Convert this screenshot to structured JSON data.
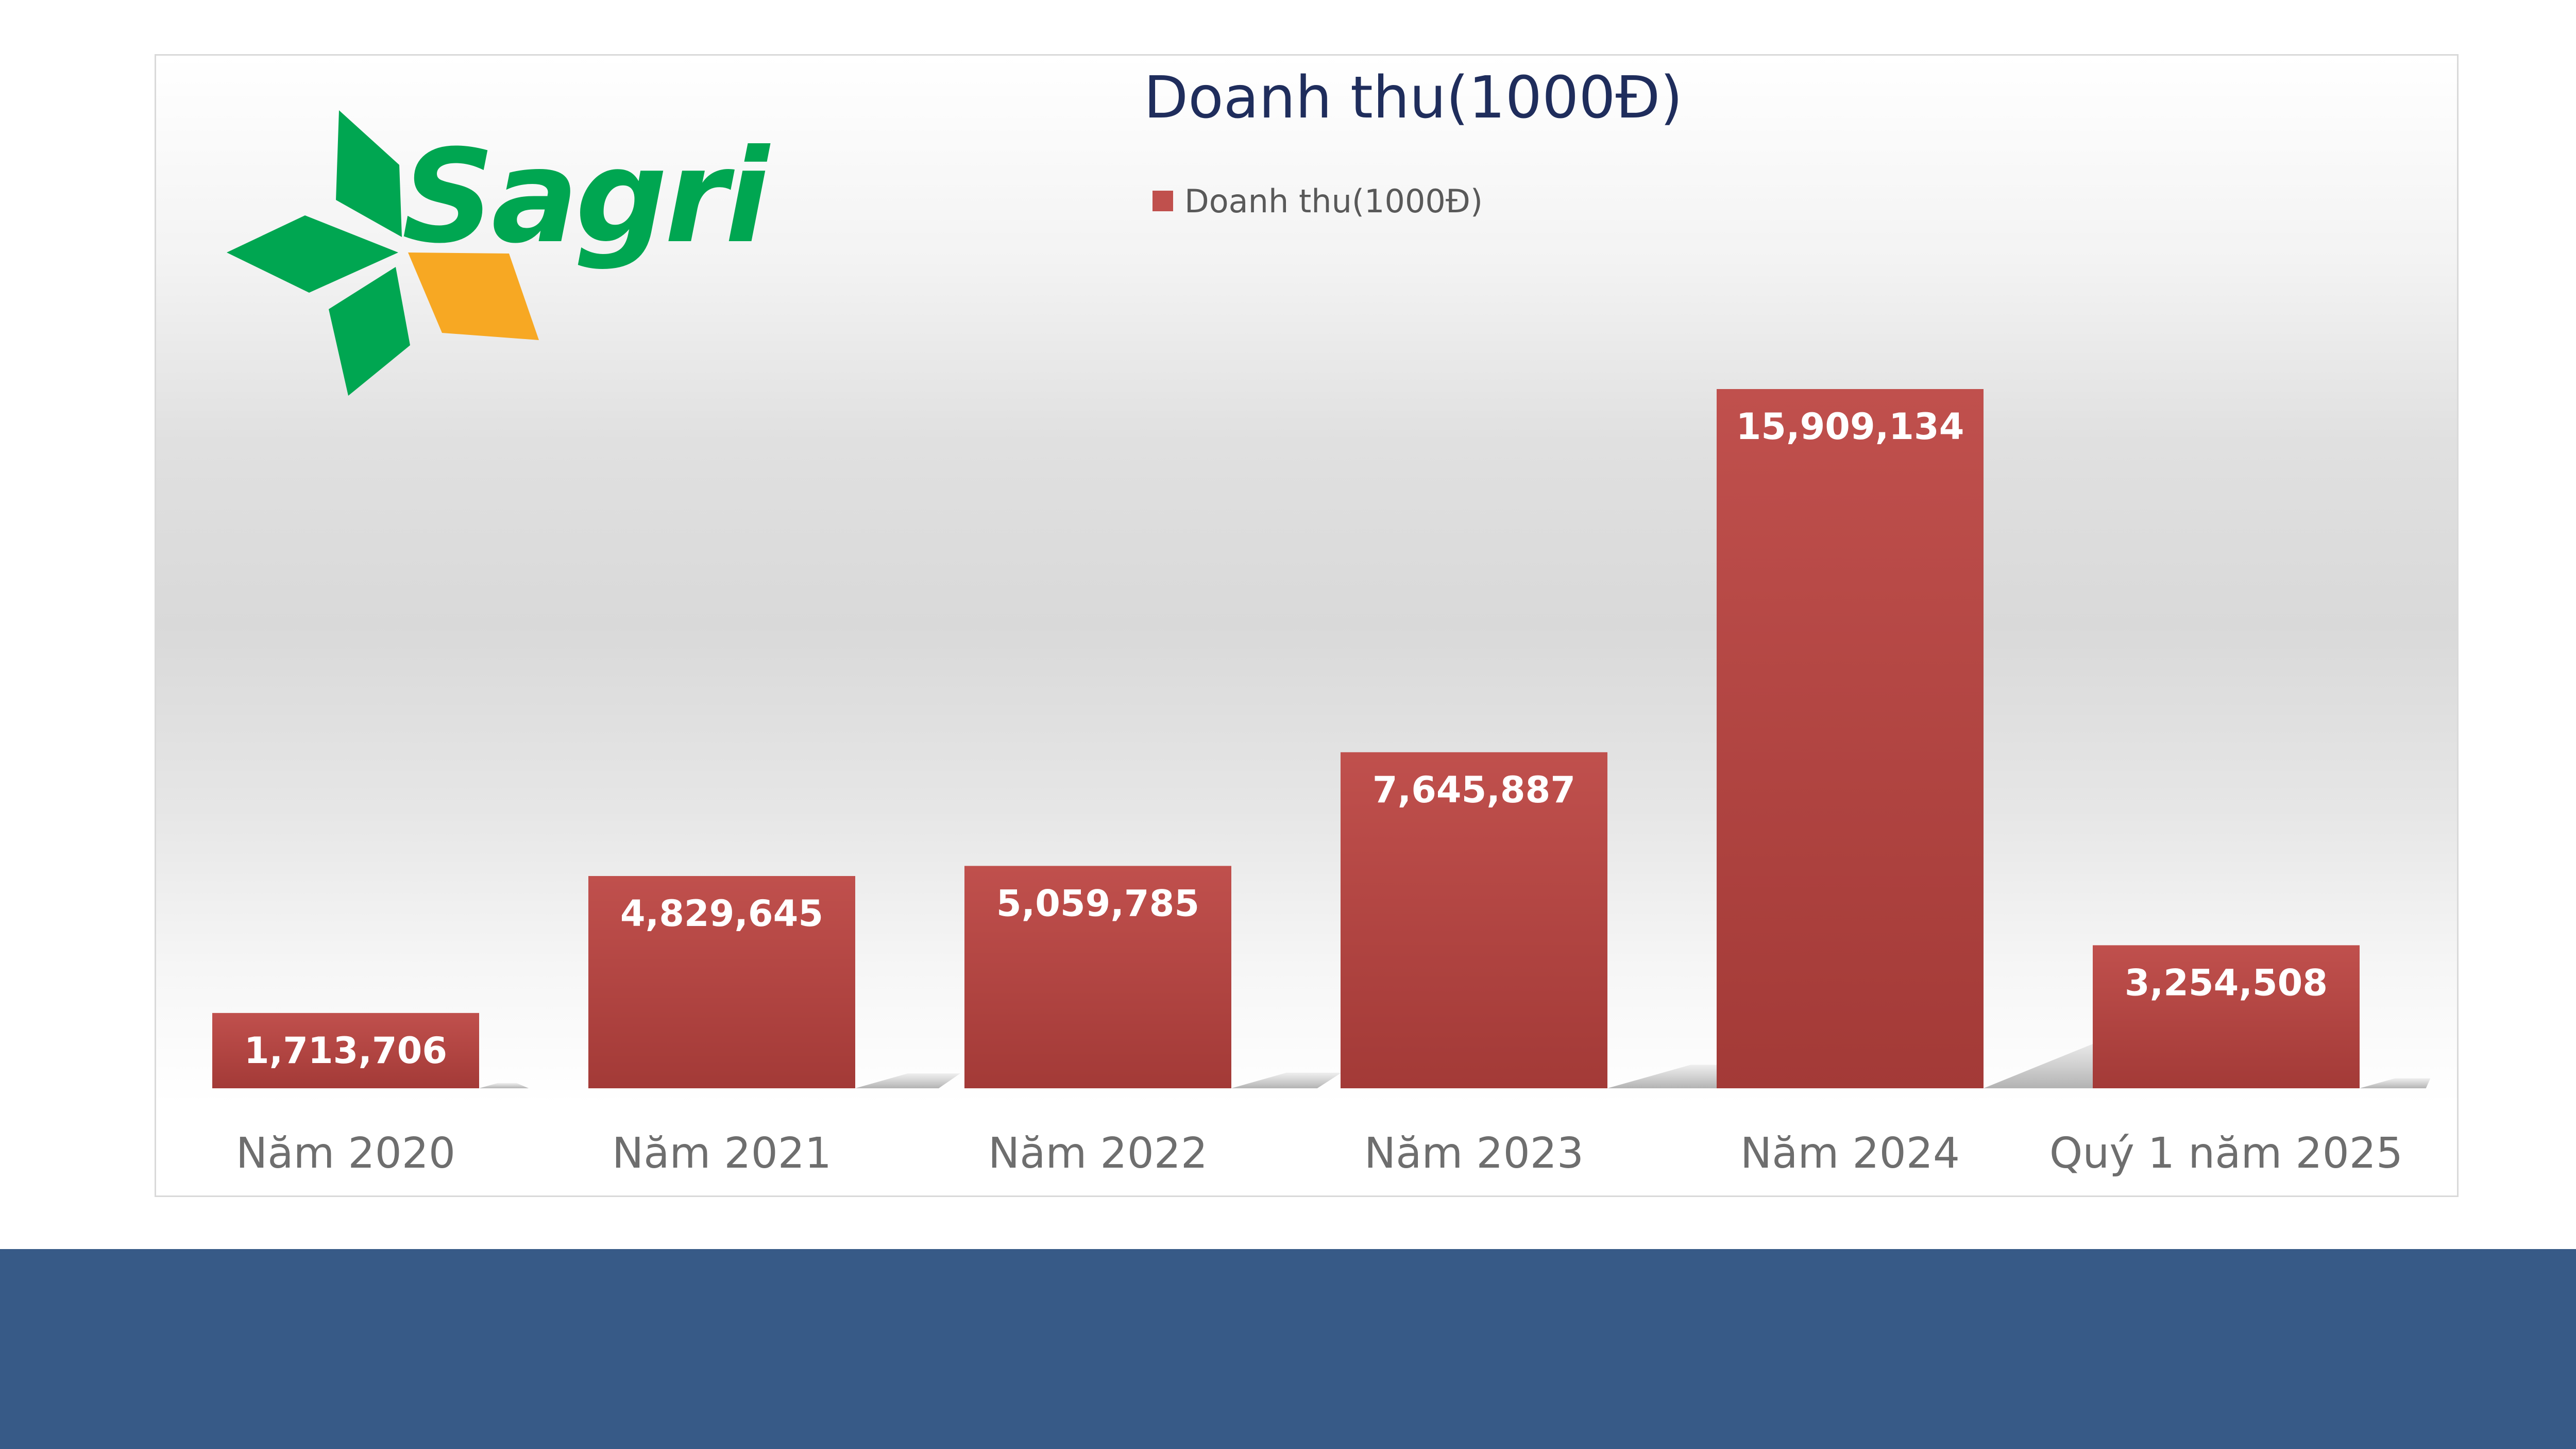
{
  "chart_data": {
    "type": "bar",
    "title": "Doanh thu(1000Đ)",
    "xlabel": "",
    "ylabel": "",
    "categories": [
      "Năm 2020",
      "Năm 2021",
      "Năm 2022",
      "Năm 2023",
      "Năm 2024",
      "Quý 1 năm 2025"
    ],
    "series": [
      {
        "name": "Doanh thu(1000Đ)",
        "values": [
          1713706,
          4829645,
          5059785,
          7645887,
          15909134,
          3254508
        ],
        "labels": [
          "1,713,706",
          "4,829,645",
          "5,059,785",
          "7,645,887",
          "15,909,134",
          "3,254,508"
        ]
      }
    ],
    "ylim": [
      0,
      18000000
    ],
    "legend": "top",
    "grid": false,
    "bar_color_top": "#c0504d",
    "bar_color_bottom": "#a33a37"
  },
  "logo": {
    "text": "Sagri",
    "green": "#00a651",
    "orange": "#f7a823"
  },
  "footer": {
    "color": "#375a87"
  }
}
